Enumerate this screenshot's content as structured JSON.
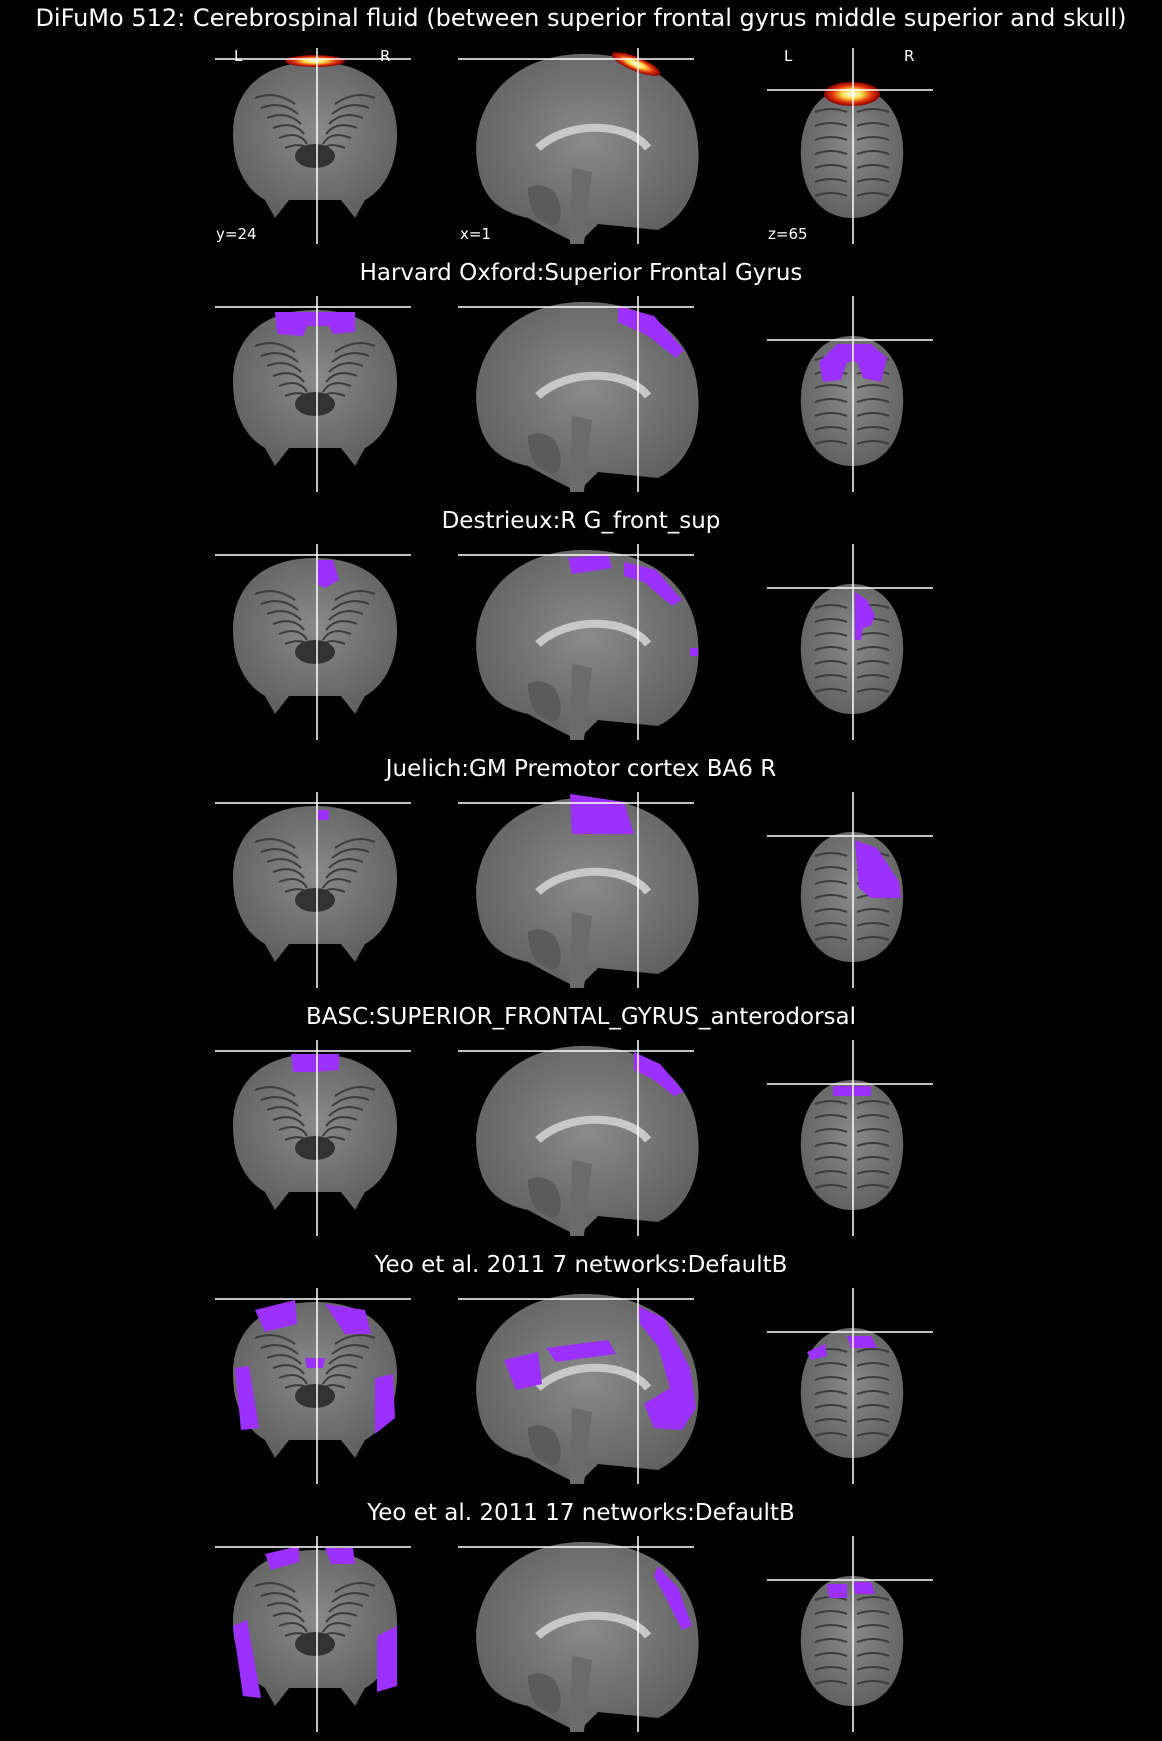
{
  "figure": {
    "main_title": "DiFuMo 512: Cerebrospinal fluid (between superior frontal gyrus middle superior and skull)",
    "orientation_labels": {
      "left": "L",
      "right": "R"
    },
    "coordinates": {
      "coronal": "y=24",
      "sagittal": "x=1",
      "axial": "z=65"
    },
    "colors": {
      "background": "#000000",
      "crosshair": "#ffffff",
      "atlas_overlay": "#9b30ff",
      "component_overlay": "hot colormap (red-orange-yellow-white)"
    }
  },
  "rows": [
    {
      "label": "",
      "overlay": "component"
    },
    {
      "label": "Harvard Oxford:Superior Frontal Gyrus",
      "overlay": "atlas"
    },
    {
      "label": "Destrieux:R G_front_sup",
      "overlay": "atlas"
    },
    {
      "label": "Juelich:GM Premotor cortex BA6 R",
      "overlay": "atlas"
    },
    {
      "label": "BASC:SUPERIOR_FRONTAL_GYRUS_anterodorsal",
      "overlay": "atlas"
    },
    {
      "label": "Yeo et al. 2011 7 networks:DefaultB",
      "overlay": "atlas"
    },
    {
      "label": "Yeo et al. 2011 17 networks:DefaultB",
      "overlay": "atlas"
    }
  ]
}
